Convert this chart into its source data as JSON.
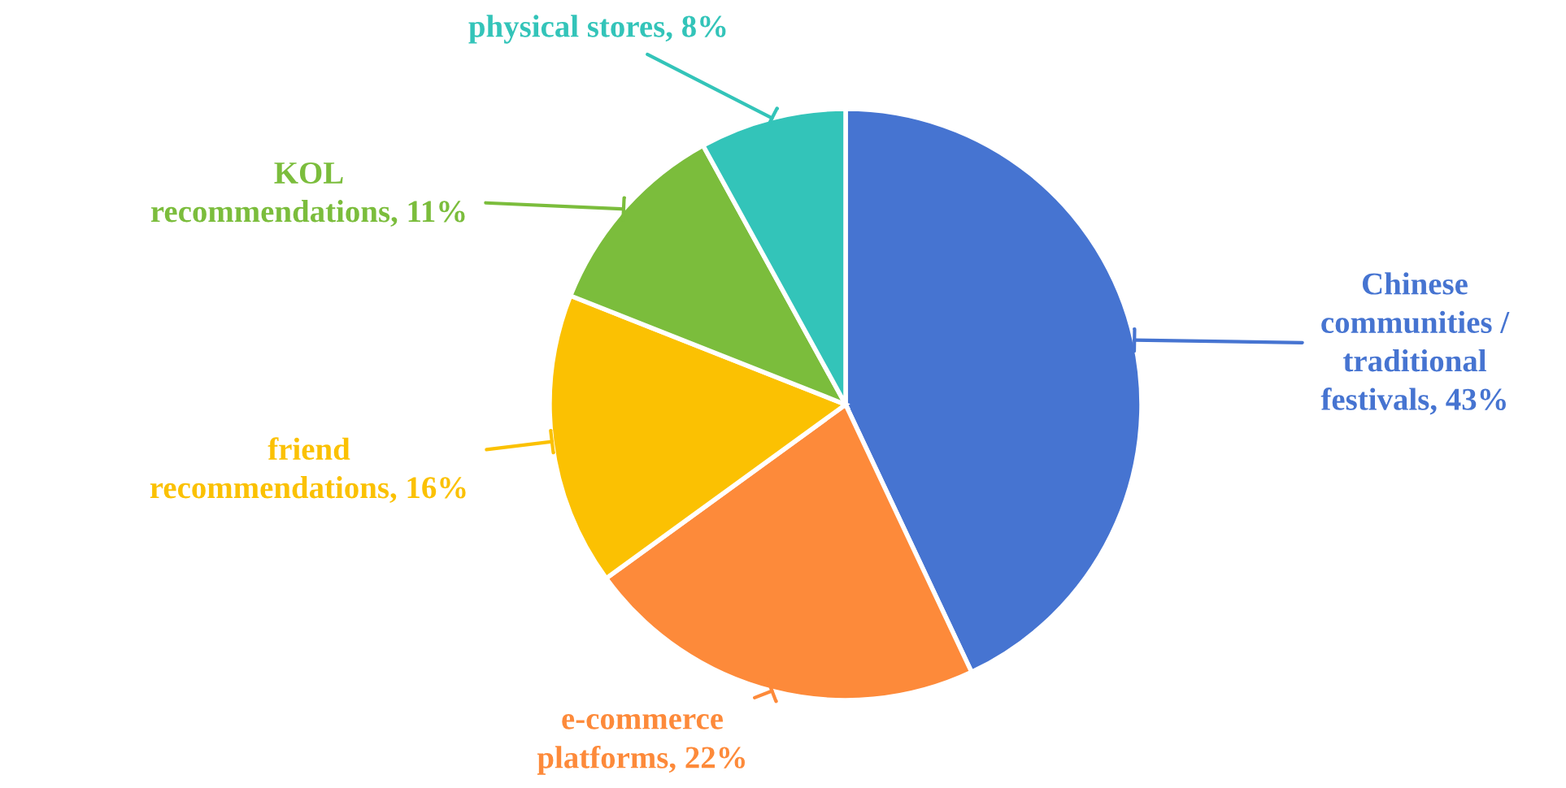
{
  "chart_data": {
    "type": "pie",
    "categories": [
      "Chinese communities / traditional festivals",
      "e-commerce platforms",
      "friend recommendations",
      "KOL recommendations",
      "physical stores"
    ],
    "values": [
      43,
      22,
      16,
      11,
      8
    ],
    "value_labels": [
      "43%",
      "22%",
      "16%",
      "11%",
      "8%"
    ],
    "colors": [
      "#4674d1",
      "#fd8a3a",
      "#fbc102",
      "#7bbd3c",
      "#33c4b9"
    ]
  }
}
